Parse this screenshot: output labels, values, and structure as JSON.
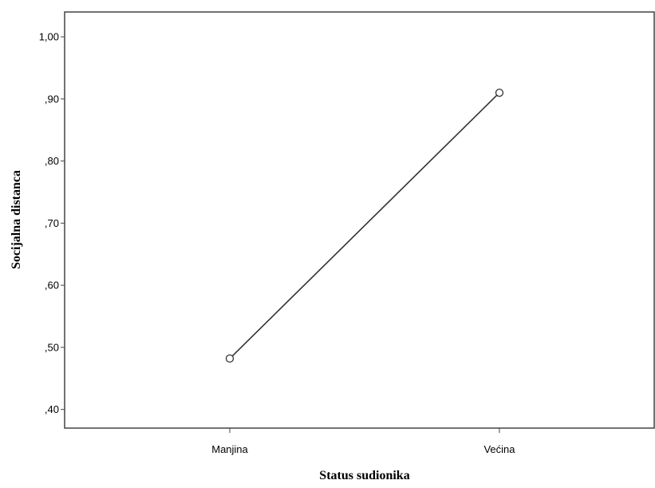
{
  "chart_data": {
    "type": "line",
    "title": "",
    "xlabel": "Status sudionika",
    "ylabel": "Socijalna distanca",
    "categories": [
      "Manjina",
      "Većina"
    ],
    "series": [
      {
        "values": [
          0.482,
          0.91
        ]
      }
    ],
    "ylim": [
      0.37,
      1.04
    ],
    "yticks": [
      0.4,
      0.5,
      0.6,
      0.7,
      0.8,
      0.9,
      1.0
    ],
    "ytick_labels": [
      ",40",
      ",50",
      ",60",
      ",70",
      ",80",
      ",90",
      "1,00"
    ],
    "grid": false,
    "legend": "none",
    "marker": "open-circle",
    "colors": {
      "line": "#333333",
      "axis": "#444444",
      "background": "#ffffff"
    }
  }
}
